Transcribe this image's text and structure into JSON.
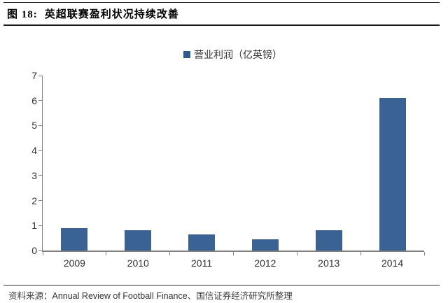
{
  "figure": {
    "label": "图  18:",
    "title": "英超联赛盈利状况持续改善"
  },
  "legend": {
    "label": "营业利润（亿英镑）",
    "color": "#2F5B88"
  },
  "source": {
    "prefix": "资料来源：",
    "english": "Annual Review of Football Finance",
    "suffix": "、国信证券经济研究所整理"
  },
  "chart_data": {
    "type": "bar",
    "title": "英超联赛盈利状况持续改善",
    "categories": [
      "2009",
      "2010",
      "2011",
      "2012",
      "2013",
      "2014"
    ],
    "series": [
      {
        "name": "营业利润（亿英镑）",
        "values": [
          0.9,
          0.8,
          0.65,
          0.45,
          0.8,
          6.1
        ]
      }
    ],
    "xlabel": "",
    "ylabel": "",
    "ylim": [
      0,
      7
    ],
    "yticks": [
      0,
      1,
      2,
      3,
      4,
      5,
      6,
      7
    ],
    "bar_color": "#3A6293",
    "grid": false,
    "legend_position": "top"
  }
}
